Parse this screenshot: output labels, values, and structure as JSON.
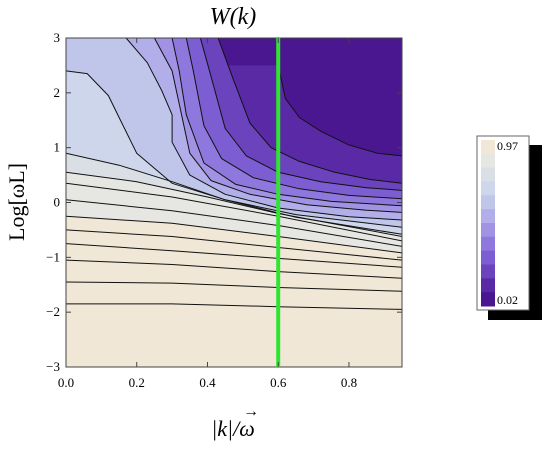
{
  "chart_data": {
    "type": "heatmap",
    "plot_style": "contour",
    "title": "W(k)",
    "xlabel": "|k|/ω",
    "xlabel_arrow": "→",
    "ylabel": "Log[ωL]",
    "xlim": [
      0.0,
      0.95
    ],
    "ylim": [
      -3.0,
      3.0
    ],
    "x_ticks": [
      "0.0",
      "0.2",
      "0.4",
      "0.6",
      "0.8"
    ],
    "x_tick_values": [
      0.0,
      0.2,
      0.4,
      0.6,
      0.8
    ],
    "y_ticks": [
      "−3",
      "−2",
      "−1",
      "0",
      "1",
      "2",
      "3"
    ],
    "y_tick_values": [
      -3,
      -2,
      -1,
      0,
      1,
      2,
      3
    ],
    "grid": false,
    "vertical_line": {
      "x": 0.6,
      "color": "#2ee62e"
    },
    "colorbar": {
      "max_label": "0.97",
      "min_label": "0.02",
      "max": 0.97,
      "min": 0.02,
      "colors": [
        "#4a1791",
        "#5a2aa6",
        "#6a43bd",
        "#7c5ed2",
        "#8f78dd",
        "#a192e4",
        "#b1aee9",
        "#c0c6ea",
        "#cdd6ea",
        "#dadfe6",
        "#e6e7e2",
        "#f1e7d7"
      ]
    },
    "contour_levels": [
      0.12,
      0.2,
      0.28,
      0.36,
      0.44,
      0.52,
      0.6,
      0.68,
      0.76,
      0.84,
      0.9,
      0.94
    ],
    "contours": [
      {
        "level": 0.12,
        "points": [
          [
            0.6,
            2.5
          ],
          [
            0.62,
            1.9
          ],
          [
            0.66,
            1.55
          ],
          [
            0.72,
            1.3
          ],
          [
            0.8,
            1.05
          ],
          [
            0.88,
            0.9
          ],
          [
            0.95,
            0.85
          ]
        ]
      },
      {
        "level": 0.2,
        "points": [
          [
            0.43,
            3.0
          ],
          [
            0.47,
            2.3
          ],
          [
            0.52,
            1.45
          ],
          [
            0.58,
            1.0
          ],
          [
            0.66,
            0.75
          ],
          [
            0.76,
            0.55
          ],
          [
            0.86,
            0.42
          ],
          [
            0.95,
            0.35
          ]
        ]
      },
      {
        "level": 0.28,
        "points": [
          [
            0.38,
            3.0
          ],
          [
            0.41,
            2.3
          ],
          [
            0.45,
            1.35
          ],
          [
            0.51,
            0.85
          ],
          [
            0.6,
            0.55
          ],
          [
            0.72,
            0.38
          ],
          [
            0.85,
            0.27
          ],
          [
            0.95,
            0.22
          ]
        ]
      },
      {
        "level": 0.36,
        "points": [
          [
            0.34,
            3.0
          ],
          [
            0.36,
            2.4
          ],
          [
            0.39,
            1.4
          ],
          [
            0.44,
            0.8
          ],
          [
            0.53,
            0.45
          ],
          [
            0.66,
            0.25
          ],
          [
            0.8,
            0.13
          ],
          [
            0.95,
            0.07
          ]
        ]
      },
      {
        "level": 0.44,
        "points": [
          [
            0.3,
            3.0
          ],
          [
            0.32,
            2.4
          ],
          [
            0.34,
            1.6
          ],
          [
            0.39,
            0.72
          ],
          [
            0.48,
            0.33
          ],
          [
            0.6,
            0.15
          ],
          [
            0.75,
            0.02
          ],
          [
            0.95,
            -0.06
          ]
        ]
      },
      {
        "level": 0.52,
        "points": [
          [
            0.25,
            3.0
          ],
          [
            0.3,
            2.4
          ],
          [
            0.32,
            1.8
          ],
          [
            0.35,
            0.9
          ],
          [
            0.41,
            0.4
          ],
          [
            0.52,
            0.15
          ],
          [
            0.68,
            -0.04
          ],
          [
            0.85,
            -0.14
          ],
          [
            0.95,
            -0.18
          ]
        ]
      },
      {
        "level": 0.6,
        "points": [
          [
            0.17,
            3.0
          ],
          [
            0.23,
            2.55
          ],
          [
            0.27,
            2.05
          ],
          [
            0.3,
            1.6
          ],
          [
            0.3,
            1.1
          ],
          [
            0.35,
            0.5
          ],
          [
            0.45,
            0.15
          ],
          [
            0.6,
            -0.1
          ],
          [
            0.8,
            -0.26
          ],
          [
            0.95,
            -0.32
          ]
        ]
      },
      {
        "level": 0.68,
        "points": [
          [
            0.0,
            2.4
          ],
          [
            0.06,
            2.35
          ],
          [
            0.12,
            1.95
          ],
          [
            0.15,
            1.55
          ],
          [
            0.2,
            0.9
          ],
          [
            0.3,
            0.35
          ],
          [
            0.45,
            0.05
          ],
          [
            0.65,
            -0.22
          ],
          [
            0.95,
            -0.45
          ]
        ]
      },
      {
        "level": 0.76,
        "points": [
          [
            0.0,
            0.9
          ],
          [
            0.15,
            0.68
          ],
          [
            0.3,
            0.38
          ],
          [
            0.45,
            0.05
          ],
          [
            0.65,
            -0.27
          ],
          [
            0.95,
            -0.58
          ]
        ]
      },
      {
        "level": 0.8,
        "points": [
          [
            0.0,
            0.55
          ],
          [
            0.2,
            0.38
          ],
          [
            0.4,
            0.1
          ],
          [
            0.6,
            -0.2
          ],
          [
            0.95,
            -0.62
          ]
        ]
      },
      {
        "level": 0.84,
        "points": [
          [
            0.0,
            0.35
          ],
          [
            0.3,
            0.1
          ],
          [
            0.6,
            -0.25
          ],
          [
            0.95,
            -0.7
          ]
        ]
      },
      {
        "level": 0.87,
        "points": [
          [
            0.0,
            0.05
          ],
          [
            0.3,
            -0.15
          ],
          [
            0.6,
            -0.42
          ],
          [
            0.95,
            -0.8
          ]
        ]
      },
      {
        "level": 0.9,
        "points": [
          [
            0.0,
            -0.25
          ],
          [
            0.3,
            -0.38
          ],
          [
            0.6,
            -0.62
          ],
          [
            0.95,
            -0.92
          ]
        ]
      },
      {
        "level": 0.92,
        "points": [
          [
            0.0,
            -0.5
          ],
          [
            0.3,
            -0.62
          ],
          [
            0.6,
            -0.82
          ],
          [
            0.95,
            -1.05
          ]
        ]
      },
      {
        "level": 0.94,
        "points": [
          [
            0.0,
            -0.75
          ],
          [
            0.3,
            -0.88
          ],
          [
            0.6,
            -1.02
          ],
          [
            0.95,
            -1.18
          ]
        ]
      },
      {
        "level": 0.95,
        "points": [
          [
            0.0,
            -1.05
          ],
          [
            0.3,
            -1.13
          ],
          [
            0.6,
            -1.26
          ],
          [
            0.95,
            -1.38
          ]
        ]
      },
      {
        "level": 0.96,
        "points": [
          [
            0.0,
            -1.45
          ],
          [
            0.3,
            -1.47
          ],
          [
            0.6,
            -1.55
          ],
          [
            0.95,
            -1.62
          ]
        ]
      },
      {
        "level": 0.97,
        "points": [
          [
            0.0,
            -1.85
          ],
          [
            0.3,
            -1.85
          ],
          [
            0.6,
            -1.9
          ],
          [
            0.95,
            -1.95
          ]
        ]
      }
    ]
  }
}
